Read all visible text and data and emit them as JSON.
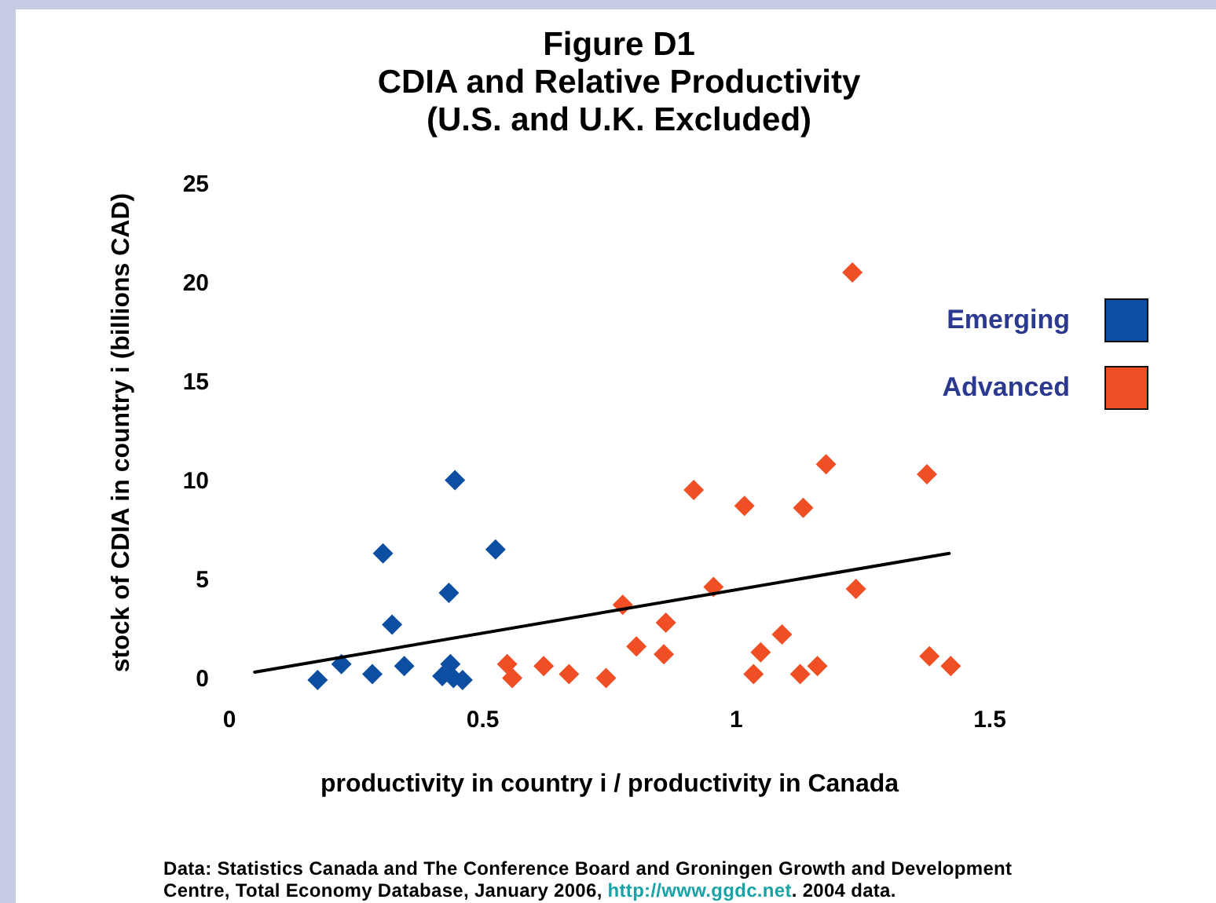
{
  "chart_data": {
    "type": "scatter",
    "title": "Figure D1",
    "subtitle": "CDIA and Relative Productivity (U.S. and U.K. Excluded)",
    "xlabel": "productivity in country i / productivity in Canada",
    "ylabel": "stock of CDIA in country i (billions CAD)",
    "annotations": [
      "Data: Statistics Canada and The Conference Board and Groningen Growth and Development Centre, Total Economy Database, January 2006, http://www.ggdc.net. 2004 data."
    ],
    "xlim": [
      0,
      1.5
    ],
    "ylim": [
      0,
      25
    ],
    "xticks": [
      0,
      0.5,
      1,
      1.5
    ],
    "yticks": [
      0,
      5,
      10,
      15,
      20,
      25
    ],
    "grid": false,
    "legend": "right",
    "marker": "diamond",
    "series": [
      {
        "name": "Emerging",
        "color": "#0c4ea2",
        "x": [
          0.174,
          0.221,
          0.282,
          0.303,
          0.321,
          0.345,
          0.433,
          0.445,
          0.525,
          0.42,
          0.436,
          0.442,
          0.46
        ],
        "values": [
          0.0,
          0.8,
          0.3,
          6.4,
          2.8,
          0.7,
          4.4,
          10.1,
          6.6,
          0.2,
          0.8,
          0.1,
          0.0
        ]
      },
      {
        "name": "Advanced",
        "color": "#f04f25",
        "x": [
          1.229,
          1.177,
          1.376,
          0.916,
          1.016,
          1.132,
          0.955,
          1.236,
          0.776,
          0.861,
          0.803,
          1.09,
          1.048,
          0.857,
          1.381,
          0.548,
          0.558,
          0.62,
          0.67,
          0.743,
          1.034,
          1.126,
          1.16,
          1.423
        ],
        "values": [
          20.6,
          10.9,
          10.4,
          9.6,
          8.8,
          8.7,
          4.7,
          4.6,
          3.8,
          2.9,
          1.7,
          2.3,
          1.4,
          1.3,
          1.2,
          0.8,
          0.1,
          0.7,
          0.3,
          0.1,
          0.3,
          0.3,
          0.7,
          0.7
        ]
      },
      {
        "type": "line",
        "color": "#000000",
        "marker": "none",
        "x": [
          0.05,
          1.42
        ],
        "values": [
          0.4,
          6.4
        ]
      }
    ]
  }
}
